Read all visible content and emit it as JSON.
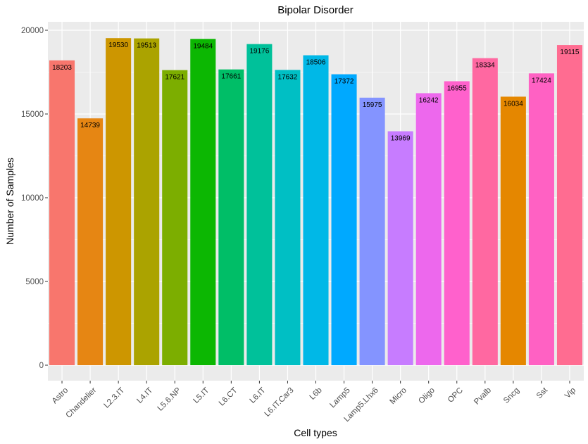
{
  "chart_data": {
    "type": "bar",
    "title": "Bipolar Disorder",
    "xlabel": "Cell types",
    "ylabel": "Number of Samples",
    "ylim": [
      0,
      20000
    ],
    "yticks": [
      0,
      5000,
      10000,
      15000,
      20000
    ],
    "grid": true,
    "legend": "none",
    "panel_background": "#EBEBEB",
    "grid_color": "#FFFFFF",
    "categories": [
      "Astro",
      "Chandelier",
      "L2.3.IT",
      "L4.IT",
      "L5.6.NP",
      "L5.IT",
      "L6.CT",
      "L6.IT",
      "L6.IT.Car3",
      "L6b",
      "Lamp5",
      "Lamp5.Lhx6",
      "Micro",
      "Oligo",
      "OPC",
      "Pvalb",
      "Sncg",
      "Sst",
      "Vip"
    ],
    "values": [
      18203,
      14739,
      19530,
      19513,
      17621,
      19484,
      17661,
      19176,
      17632,
      18506,
      17372,
      15975,
      13969,
      16242,
      16955,
      18334,
      16034,
      17424,
      19115
    ],
    "colors": [
      "#F8766D",
      "#E68613",
      "#CD9600",
      "#ABA300",
      "#7CAE00",
      "#0CB702",
      "#00BE67",
      "#00C19A",
      "#00BFC4",
      "#00B8E7",
      "#00A9FF",
      "#8494FF",
      "#C77CFF",
      "#ED68ED",
      "#FF61CC",
      "#FF68A1",
      "#E58700",
      "#FF61C3",
      "#FF6C91"
    ]
  }
}
